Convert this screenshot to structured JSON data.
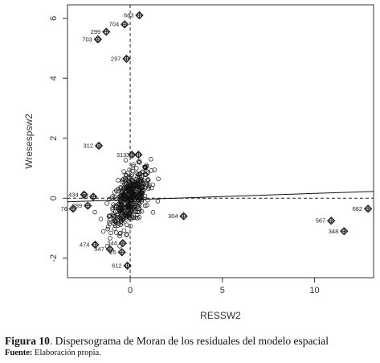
{
  "chart_data": {
    "type": "scatter",
    "xlabel": "RESSW2",
    "ylabel": "Wresespsw2",
    "xlim": [
      -3.4,
      13.2
    ],
    "ylim": [
      -2.65,
      6.45
    ],
    "x_ticks": [
      0,
      5,
      10
    ],
    "y_ticks": [
      -2,
      0,
      2,
      4,
      6
    ],
    "vline_x": 0,
    "hline_y": 0,
    "regression": {
      "intercept": -0.05,
      "slope": 0.021
    },
    "cluster": {
      "n": 460,
      "center": [
        0,
        0
      ],
      "sd_x": 0.55,
      "sd_y": 0.5
    },
    "influential_points": [
      {
        "label": "683",
        "x": 0.5,
        "y": 6.1
      },
      {
        "label": "704",
        "x": -0.3,
        "y": 5.8
      },
      {
        "label": "299",
        "x": -1.3,
        "y": 5.55
      },
      {
        "label": "703",
        "x": -1.75,
        "y": 5.3
      },
      {
        "label": "297",
        "x": -0.2,
        "y": 4.65
      },
      {
        "label": "312",
        "x": -1.7,
        "y": 1.75
      },
      {
        "label": "313",
        "x": 0.1,
        "y": 1.45
      },
      {
        "label": "30",
        "x": 0.45,
        "y": 1.45
      },
      {
        "label": "434",
        "x": -2.5,
        "y": 0.12
      },
      {
        "label": "25",
        "x": -2.0,
        "y": 0.05
      },
      {
        "label": "289",
        "x": -2.3,
        "y": -0.25
      },
      {
        "label": "76",
        "x": -3.1,
        "y": -0.35
      },
      {
        "label": "304",
        "x": 2.9,
        "y": -0.6
      },
      {
        "label": "682",
        "x": 12.9,
        "y": -0.35
      },
      {
        "label": "567",
        "x": 10.9,
        "y": -0.75
      },
      {
        "label": "348",
        "x": 11.6,
        "y": -1.1
      },
      {
        "label": "474",
        "x": -1.9,
        "y": -1.55
      },
      {
        "label": "344",
        "x": -0.4,
        "y": -1.5
      },
      {
        "label": "347",
        "x": -1.1,
        "y": -1.7
      },
      {
        "label": "25",
        "x": -0.45,
        "y": -1.8
      },
      {
        "label": "612",
        "x": -0.15,
        "y": -2.25
      }
    ]
  },
  "caption": {
    "figure_label": "Figura 10",
    "figure_text": ". Dispersograma de Moran de los residuales del modelo espacial",
    "source_label": "Fuente:",
    "source_text": " Elaboración propia."
  }
}
